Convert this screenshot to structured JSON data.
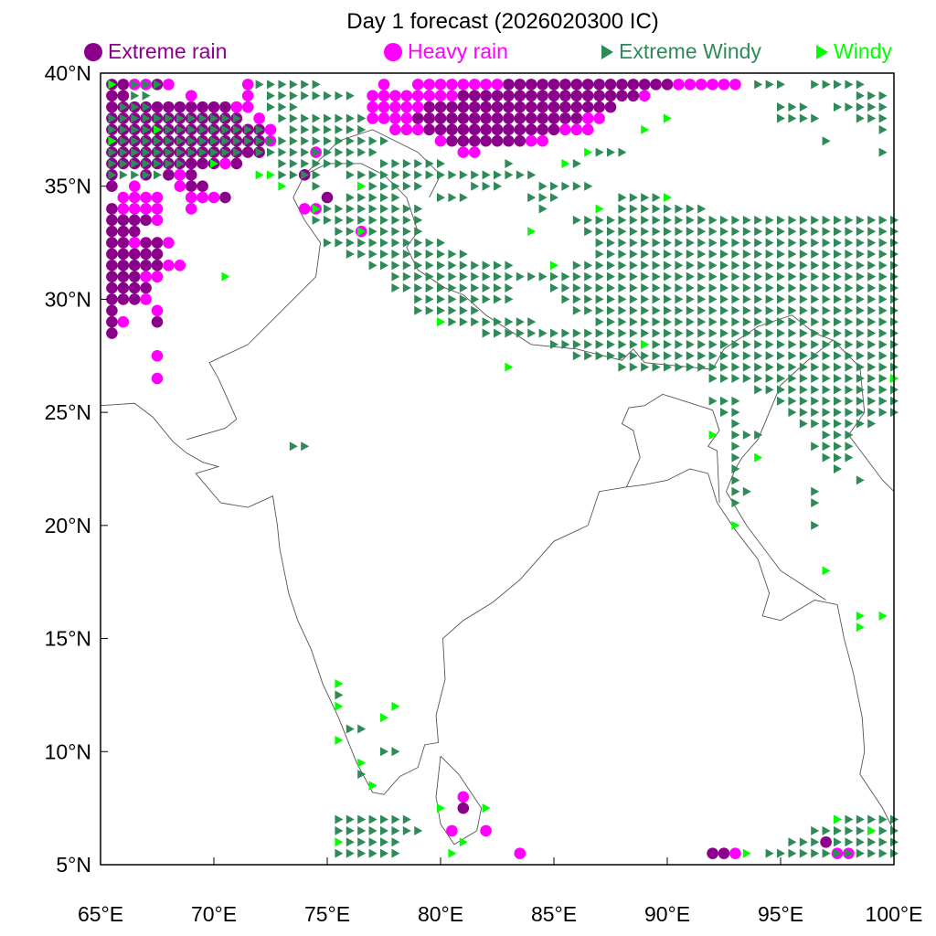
{
  "title": "Day 1 forecast (2026020300 IC)",
  "legend": [
    {
      "label": "Extreme rain",
      "color": "#8b008b",
      "shape": "circle"
    },
    {
      "label": "Heavy rain",
      "color": "#ff00ff",
      "shape": "circle"
    },
    {
      "label": "Extreme Windy",
      "color": "#2e8b57",
      "shape": "triangle"
    },
    {
      "label": "Windy",
      "color": "#00ff00",
      "shape": "triangle"
    }
  ],
  "axes": {
    "lon_range": [
      65,
      100
    ],
    "lat_range": [
      5,
      40
    ],
    "x_ticks": [
      "65°E",
      "70°E",
      "75°E",
      "80°E",
      "85°E",
      "90°E",
      "95°E",
      "100°E"
    ],
    "y_ticks": [
      "40°N",
      "35°N",
      "30°N",
      "25°N",
      "20°N",
      "15°N",
      "10°N",
      "5°N"
    ]
  },
  "grid_step_deg": 0.5,
  "markers": {
    "extreme_rain": [
      [
        39.5,
        65.5,
        66
      ],
      [
        39.5,
        67.5,
        67.5
      ],
      [
        39,
        65.5,
        66
      ],
      [
        38.5,
        65.5,
        71
      ],
      [
        38,
        65.5,
        71
      ],
      [
        37.5,
        65.5,
        72
      ],
      [
        37,
        65.5,
        72
      ],
      [
        36.5,
        65.5,
        72
      ],
      [
        36,
        65.5,
        70
      ],
      [
        36,
        71,
        71
      ],
      [
        35.5,
        65.5,
        65.5
      ],
      [
        35.5,
        67,
        67
      ],
      [
        35.5,
        68,
        69
      ],
      [
        35,
        65.5,
        65.5
      ],
      [
        35,
        69,
        69.5
      ],
      [
        34.5,
        70.5,
        70.5
      ],
      [
        34,
        65.5,
        65.5
      ],
      [
        33.5,
        65.5,
        67
      ],
      [
        33,
        65.5,
        66.5
      ],
      [
        32.5,
        65.5,
        67.5
      ],
      [
        32,
        65.5,
        67.5
      ],
      [
        31.5,
        65.5,
        67.5
      ],
      [
        31,
        65.5,
        67.5
      ],
      [
        30.5,
        65.5,
        67
      ],
      [
        30,
        65.5,
        66.5
      ],
      [
        29.5,
        65.5,
        65.5
      ],
      [
        29,
        65.5,
        65.5
      ],
      [
        29,
        67.5,
        67.5
      ],
      [
        28.5,
        65.5,
        65.5
      ],
      [
        39.5,
        83,
        90
      ],
      [
        39,
        81,
        88.5
      ],
      [
        38.5,
        79.5,
        87.5
      ],
      [
        38,
        79,
        86
      ],
      [
        37.5,
        79.5,
        85
      ],
      [
        37,
        80.5,
        83.5
      ],
      [
        35.5,
        74,
        74
      ],
      [
        34.5,
        75,
        75
      ],
      [
        7.5,
        81,
        81
      ],
      [
        6,
        97,
        97
      ],
      [
        5.5,
        92,
        92.5
      ]
    ],
    "heavy_rain": [
      [
        39.5,
        66.5,
        67
      ],
      [
        39.5,
        68,
        68
      ],
      [
        39.5,
        71.5,
        71.5
      ],
      [
        39.5,
        77.5,
        77.5
      ],
      [
        39.5,
        79,
        82.5
      ],
      [
        39.5,
        90.5,
        93
      ],
      [
        39,
        69,
        69
      ],
      [
        39,
        71.5,
        71.5
      ],
      [
        39,
        77,
        80.5
      ],
      [
        39,
        89,
        89
      ],
      [
        38.5,
        71,
        71.5
      ],
      [
        38.5,
        77,
        79
      ],
      [
        38,
        72,
        72
      ],
      [
        38,
        77,
        78.5
      ],
      [
        38,
        86.5,
        87
      ],
      [
        37.5,
        72.5,
        72.5
      ],
      [
        37.5,
        78,
        79
      ],
      [
        37.5,
        85.5,
        86.5
      ],
      [
        37,
        72.5,
        72.5
      ],
      [
        37,
        80,
        80
      ],
      [
        37,
        84,
        84.5
      ],
      [
        36.5,
        81,
        81.5
      ],
      [
        36.5,
        74.5,
        74.5
      ],
      [
        36,
        70.5,
        70.5
      ],
      [
        35.5,
        68.5,
        68.5
      ],
      [
        35,
        66.5,
        66.5
      ],
      [
        35,
        68.5,
        68.5
      ],
      [
        34.5,
        66,
        67.5
      ],
      [
        34.5,
        69,
        70
      ],
      [
        34,
        66,
        67.5
      ],
      [
        34,
        69,
        69
      ],
      [
        34,
        74,
        74.5
      ],
      [
        33.5,
        67.5,
        67.5
      ],
      [
        33,
        76.5,
        76.5
      ],
      [
        32.5,
        66.5,
        66.5
      ],
      [
        32.5,
        68,
        68
      ],
      [
        31.5,
        68,
        68.5
      ],
      [
        31,
        67,
        67.5
      ],
      [
        30,
        67,
        67
      ],
      [
        29.5,
        67.5,
        67.5
      ],
      [
        29,
        66,
        66
      ],
      [
        27.5,
        67.5,
        67.5
      ],
      [
        26.5,
        67.5,
        67.5
      ],
      [
        8,
        81,
        81
      ],
      [
        6.5,
        80.5,
        80.5
      ],
      [
        6.5,
        82,
        82
      ],
      [
        5.5,
        83.5,
        83.5
      ],
      [
        5.5,
        93,
        93
      ],
      [
        5.5,
        97.5,
        98
      ]
    ],
    "extreme_windy": [
      [
        39.5,
        66.5,
        67.5
      ],
      [
        39.5,
        72,
        74.5
      ],
      [
        39.5,
        94,
        95
      ],
      [
        39.5,
        96.5,
        98.5
      ],
      [
        39,
        66.5,
        67
      ],
      [
        39,
        72.5,
        76
      ],
      [
        39,
        98.5,
        99.5
      ],
      [
        38.5,
        66,
        67
      ],
      [
        38.5,
        72.5,
        73.5
      ],
      [
        38.5,
        95,
        96
      ],
      [
        38.5,
        97.5,
        99.5
      ],
      [
        38,
        65.5,
        71
      ],
      [
        38,
        73,
        76.5
      ],
      [
        38,
        95,
        96.5
      ],
      [
        38,
        98.5,
        99.5
      ],
      [
        37.5,
        65.5,
        72
      ],
      [
        37.5,
        73.5,
        76.5
      ],
      [
        37.5,
        99.5,
        99.5
      ],
      [
        37,
        65.5,
        72
      ],
      [
        37,
        72.5,
        77.5
      ],
      [
        37,
        97,
        97
      ],
      [
        36.5,
        65.5,
        71
      ],
      [
        36.5,
        72,
        77
      ],
      [
        36.5,
        87,
        88
      ],
      [
        36.5,
        99.5,
        99.5
      ],
      [
        36,
        65.5,
        68.5
      ],
      [
        36,
        73,
        76
      ],
      [
        36,
        77.5,
        80
      ],
      [
        36,
        83,
        83
      ],
      [
        36,
        86,
        86
      ],
      [
        35.5,
        65.5,
        67.5
      ],
      [
        35.5,
        73,
        74.5
      ],
      [
        35.5,
        76,
        77.5
      ],
      [
        35.5,
        78,
        84
      ],
      [
        35,
        74.5,
        74.5
      ],
      [
        35,
        76.5,
        79
      ],
      [
        35,
        81.5,
        82.5
      ],
      [
        35,
        84.5,
        86.5
      ],
      [
        34.5,
        76,
        78
      ],
      [
        34.5,
        80,
        81
      ],
      [
        34.5,
        84,
        85
      ],
      [
        34.5,
        88,
        89.5
      ],
      [
        34,
        75,
        79
      ],
      [
        34,
        84.5,
        84.5
      ],
      [
        34,
        88,
        91.5
      ],
      [
        33.5,
        74.5,
        79
      ],
      [
        33.5,
        86,
        100
      ],
      [
        33,
        75.5,
        79
      ],
      [
        33,
        86.5,
        100
      ],
      [
        32.5,
        75,
        80
      ],
      [
        32.5,
        87,
        100
      ],
      [
        32,
        76,
        81
      ],
      [
        32,
        87,
        100
      ],
      [
        31.5,
        77,
        83
      ],
      [
        31.5,
        86,
        100
      ],
      [
        31,
        78,
        100
      ],
      [
        30.5,
        78,
        83
      ],
      [
        30.5,
        85,
        100
      ],
      [
        30,
        79,
        83
      ],
      [
        30,
        85.5,
        100
      ],
      [
        29.5,
        79,
        81.5
      ],
      [
        29.5,
        86,
        100
      ],
      [
        29,
        80,
        84
      ],
      [
        29,
        87,
        100
      ],
      [
        28.5,
        82,
        100
      ],
      [
        28,
        85,
        100
      ],
      [
        27.5,
        86,
        100
      ],
      [
        27,
        88,
        100
      ],
      [
        26.5,
        92,
        100
      ],
      [
        26,
        94,
        100
      ],
      [
        25.5,
        92,
        93
      ],
      [
        25.5,
        95,
        100
      ],
      [
        25,
        92.5,
        93
      ],
      [
        25,
        95.5,
        100
      ],
      [
        24.5,
        93,
        93
      ],
      [
        24.5,
        96,
        99
      ],
      [
        24,
        93,
        94
      ],
      [
        24,
        97,
        98
      ],
      [
        23.5,
        73.5,
        74
      ],
      [
        23.5,
        93,
        93
      ],
      [
        23.5,
        96.5,
        98
      ],
      [
        23,
        93,
        93
      ],
      [
        23,
        97,
        98
      ],
      [
        22.5,
        93,
        93
      ],
      [
        22.5,
        97.5,
        97.5
      ],
      [
        22,
        93,
        93
      ],
      [
        22,
        98.5,
        98.5
      ],
      [
        21.5,
        93,
        93.5
      ],
      [
        21.5,
        96.5,
        96.5
      ],
      [
        21,
        93,
        93
      ],
      [
        21,
        96.5,
        96.5
      ],
      [
        20,
        96.5,
        96.5
      ],
      [
        12.5,
        75.5,
        75.5
      ],
      [
        11,
        76,
        76.5
      ],
      [
        10,
        77.5,
        78
      ],
      [
        9,
        76.5,
        76.5
      ],
      [
        8.5,
        77,
        77
      ],
      [
        7,
        75.5,
        78.5
      ],
      [
        6.5,
        75.5,
        79
      ],
      [
        6,
        76,
        78
      ],
      [
        5.5,
        75.5,
        78
      ],
      [
        7,
        97.5,
        100
      ],
      [
        6.5,
        96.5,
        100
      ],
      [
        6,
        95.5,
        96.5
      ],
      [
        6,
        97.5,
        100
      ],
      [
        5.5,
        94.5,
        100
      ]
    ],
    "windy": [
      [
        39.5,
        65.5
      ],
      [
        37,
        65.5
      ],
      [
        37.5,
        67.5
      ],
      [
        36,
        70
      ],
      [
        35.5,
        72
      ],
      [
        35.5,
        72.5
      ],
      [
        35,
        73
      ],
      [
        35,
        76.5
      ],
      [
        34,
        74.5
      ],
      [
        33,
        76.5
      ],
      [
        33,
        84
      ],
      [
        34,
        87
      ],
      [
        34.5,
        90
      ],
      [
        36,
        85.5
      ],
      [
        36.5,
        86.5
      ],
      [
        37.5,
        89
      ],
      [
        38,
        90
      ],
      [
        31.5,
        85
      ],
      [
        29,
        80
      ],
      [
        28,
        89
      ],
      [
        27,
        83
      ],
      [
        24,
        92
      ],
      [
        23,
        94
      ],
      [
        20,
        93
      ],
      [
        18,
        97
      ],
      [
        16,
        98.5
      ],
      [
        16,
        99.5
      ],
      [
        15.5,
        98.5
      ],
      [
        13,
        75.5
      ],
      [
        12,
        75.5
      ],
      [
        11.5,
        77.5
      ],
      [
        10.5,
        75.5
      ],
      [
        9.5,
        76.5
      ],
      [
        8.5,
        77
      ],
      [
        7.5,
        80
      ],
      [
        7.5,
        82
      ],
      [
        6,
        81
      ],
      [
        6,
        75.5
      ],
      [
        5.5,
        80.5
      ],
      [
        5.5,
        93.5
      ],
      [
        6.5,
        99
      ],
      [
        7,
        97.5
      ],
      [
        12,
        78
      ],
      [
        26.5,
        100
      ],
      [
        31,
        70.5
      ]
    ]
  }
}
